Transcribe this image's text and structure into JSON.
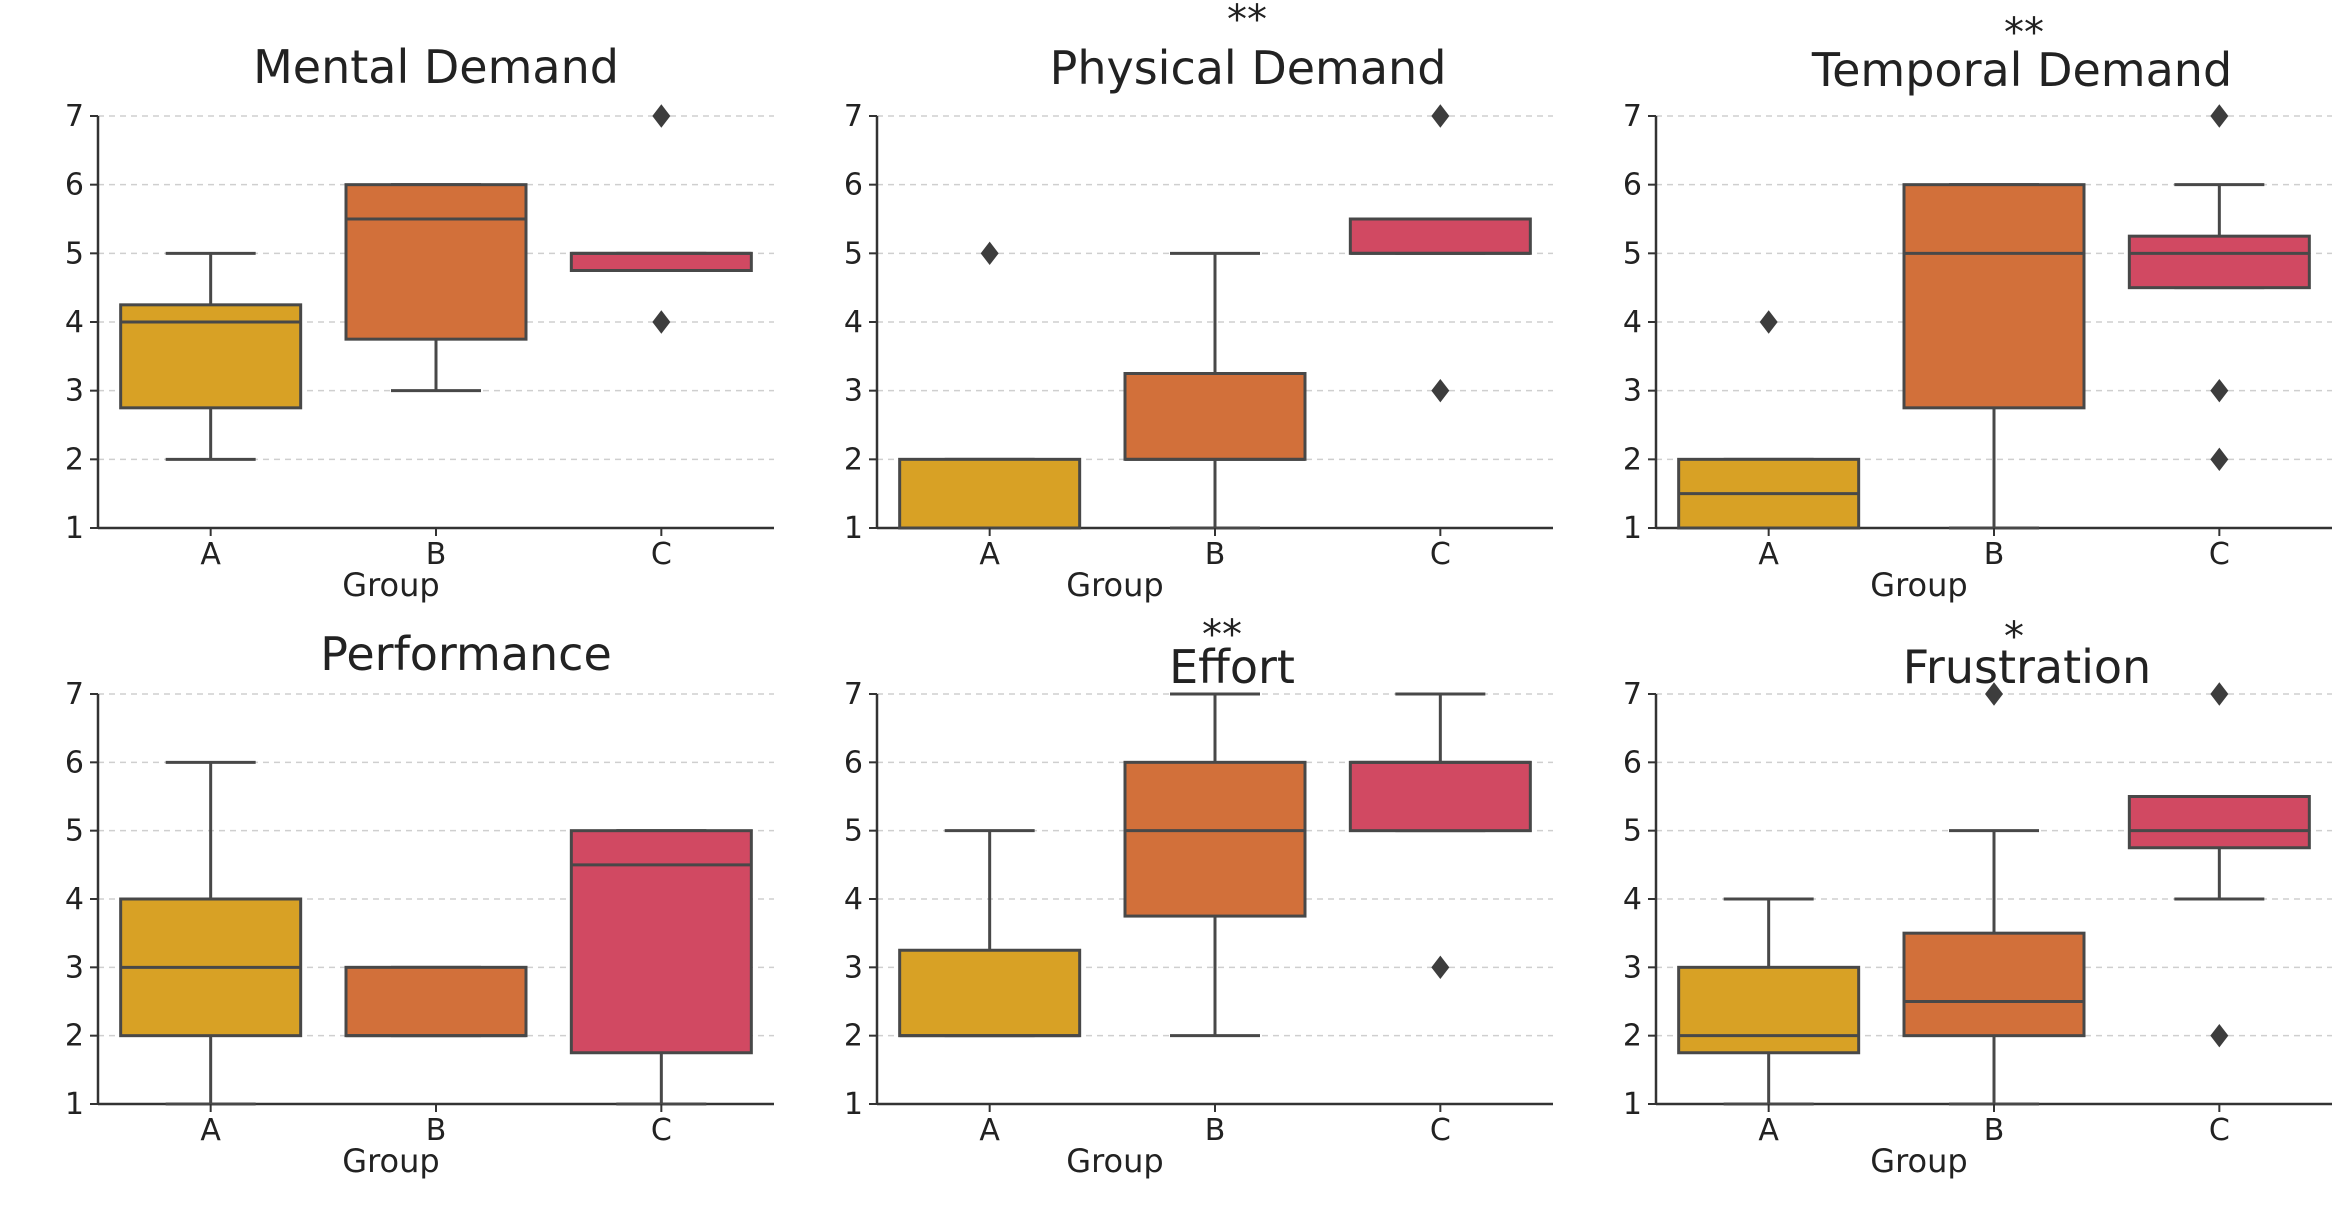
{
  "colors": {
    "A": "#d8a125",
    "B": "#d2703a",
    "C": "#d14962",
    "line": "#484848",
    "grid": "#cfcfcf"
  },
  "chart_data": [
    {
      "type": "box",
      "title": "Mental Demand",
      "significance": "",
      "xlabel": "Group",
      "ylabel": "",
      "ylim": [
        1,
        7
      ],
      "yticks": [
        "1",
        "2",
        "3",
        "4",
        "5",
        "6",
        "7"
      ],
      "categories": [
        "A",
        "B",
        "C"
      ],
      "boxes": [
        {
          "group": "A",
          "whisker_low": 2,
          "q1": 2.75,
          "median": 4,
          "q3": 4.25,
          "whisker_high": 5,
          "outliers": []
        },
        {
          "group": "B",
          "whisker_low": 3,
          "q1": 3.75,
          "median": 5.5,
          "q3": 6,
          "whisker_high": 6,
          "outliers": []
        },
        {
          "group": "C",
          "whisker_low": 4.75,
          "q1": 4.75,
          "median": 5,
          "q3": 5,
          "whisker_high": 5,
          "outliers": [
            4,
            7
          ]
        }
      ]
    },
    {
      "type": "box",
      "title": "Physical Demand",
      "significance": "**",
      "xlabel": "Group",
      "ylabel": "",
      "ylim": [
        1,
        7
      ],
      "yticks": [
        "1",
        "2",
        "3",
        "4",
        "5",
        "6",
        "7"
      ],
      "categories": [
        "A",
        "B",
        "C"
      ],
      "boxes": [
        {
          "group": "A",
          "whisker_low": 1,
          "q1": 1,
          "median": 1,
          "q3": 2,
          "whisker_high": 2,
          "outliers": [
            5
          ]
        },
        {
          "group": "B",
          "whisker_low": 1,
          "q1": 2,
          "median": 2,
          "q3": 3.25,
          "whisker_high": 5,
          "outliers": []
        },
        {
          "group": "C",
          "whisker_low": 5,
          "q1": 5,
          "median": 5,
          "q3": 5.5,
          "whisker_high": 5.5,
          "outliers": [
            3,
            7
          ]
        }
      ]
    },
    {
      "type": "box",
      "title": "Temporal Demand",
      "significance": "**",
      "xlabel": "Group",
      "ylabel": "",
      "ylim": [
        1,
        7
      ],
      "yticks": [
        "1",
        "2",
        "3",
        "4",
        "5",
        "6",
        "7"
      ],
      "categories": [
        "A",
        "B",
        "C"
      ],
      "boxes": [
        {
          "group": "A",
          "whisker_low": 1,
          "q1": 1,
          "median": 1.5,
          "q3": 2,
          "whisker_high": 2,
          "outliers": [
            4
          ]
        },
        {
          "group": "B",
          "whisker_low": 1,
          "q1": 2.75,
          "median": 5,
          "q3": 6,
          "whisker_high": 6,
          "outliers": []
        },
        {
          "group": "C",
          "whisker_low": 4.5,
          "q1": 4.5,
          "median": 5,
          "q3": 5.25,
          "whisker_high": 6,
          "outliers": [
            2,
            3,
            7
          ]
        }
      ]
    },
    {
      "type": "box",
      "title": "Performance",
      "significance": "",
      "xlabel": "Group",
      "ylabel": "",
      "ylim": [
        1,
        7
      ],
      "yticks": [
        "1",
        "2",
        "3",
        "4",
        "5",
        "6",
        "7"
      ],
      "categories": [
        "A",
        "B",
        "C"
      ],
      "boxes": [
        {
          "group": "A",
          "whisker_low": 1,
          "q1": 2,
          "median": 3,
          "q3": 4,
          "whisker_high": 6,
          "outliers": []
        },
        {
          "group": "B",
          "whisker_low": 2,
          "q1": 2,
          "median": 2,
          "q3": 3,
          "whisker_high": 3,
          "outliers": []
        },
        {
          "group": "C",
          "whisker_low": 1,
          "q1": 1.75,
          "median": 4.5,
          "q3": 5,
          "whisker_high": 5,
          "outliers": []
        }
      ]
    },
    {
      "type": "box",
      "title": "Effort",
      "significance": "**",
      "xlabel": "Group",
      "ylabel": "",
      "ylim": [
        1,
        7
      ],
      "yticks": [
        "1",
        "2",
        "3",
        "4",
        "5",
        "6",
        "7"
      ],
      "categories": [
        "A",
        "B",
        "C"
      ],
      "boxes": [
        {
          "group": "A",
          "whisker_low": 2,
          "q1": 2,
          "median": 2,
          "q3": 3.25,
          "whisker_high": 5,
          "outliers": []
        },
        {
          "group": "B",
          "whisker_low": 2,
          "q1": 3.75,
          "median": 5,
          "q3": 6,
          "whisker_high": 7,
          "outliers": []
        },
        {
          "group": "C",
          "whisker_low": 5,
          "q1": 5,
          "median": 6,
          "q3": 6,
          "whisker_high": 7,
          "outliers": [
            3
          ]
        }
      ]
    },
    {
      "type": "box",
      "title": "Frustration",
      "significance": "*",
      "xlabel": "Group",
      "ylabel": "",
      "ylim": [
        1,
        7
      ],
      "yticks": [
        "1",
        "2",
        "3",
        "4",
        "5",
        "6",
        "7"
      ],
      "categories": [
        "A",
        "B",
        "C"
      ],
      "boxes": [
        {
          "group": "A",
          "whisker_low": 1,
          "q1": 1.75,
          "median": 2,
          "q3": 3,
          "whisker_high": 4,
          "outliers": []
        },
        {
          "group": "B",
          "whisker_low": 1,
          "q1": 2,
          "median": 2.5,
          "q3": 3.5,
          "whisker_high": 5,
          "outliers": [
            7
          ]
        },
        {
          "group": "C",
          "whisker_low": 4,
          "q1": 4.75,
          "median": 5,
          "q3": 5.5,
          "whisker_high": 5.5,
          "outliers": [
            2,
            7
          ]
        }
      ]
    }
  ]
}
